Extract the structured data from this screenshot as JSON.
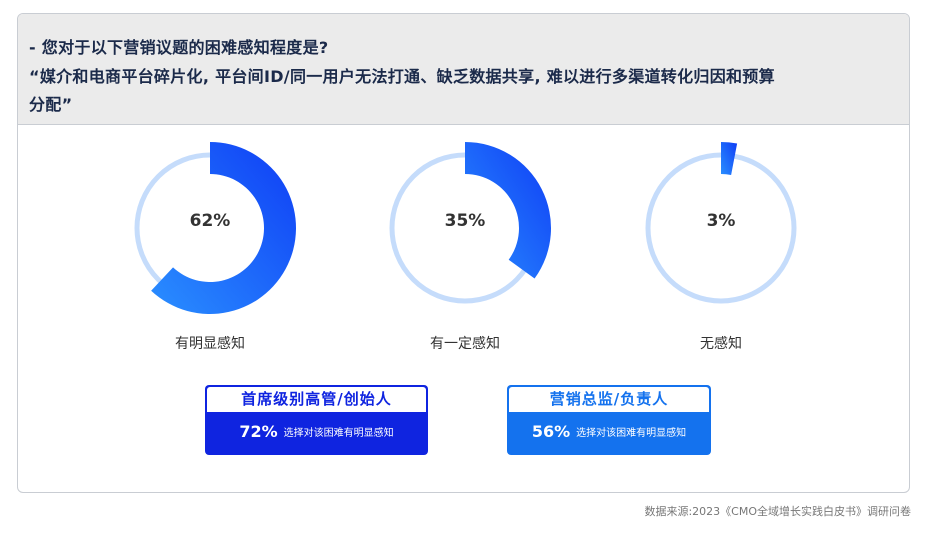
{
  "question": {
    "line1": "- 您对于以下营销议题的困难感知程度是?",
    "line2": "“媒介和电商平台碎片化, 平台间ID/同一用户无法打通、缺乏数据共享, 难以进行多渠道转化归因和预算",
    "line3": "分配”"
  },
  "chart_data": {
    "type": "pie",
    "subtype": "donut-gauge",
    "categories": [
      "有明显感知",
      "有一定感知",
      "无感知"
    ],
    "values": [
      62,
      35,
      3
    ],
    "value_labels": [
      "62%",
      "35%",
      "3%"
    ],
    "unit": "%",
    "colors": {
      "track": "#c5dcfb",
      "gradient_start": "#0f3df5",
      "gradient_end": "#2a8fff"
    }
  },
  "callouts": [
    {
      "title": "首席级别高管/创始人",
      "pct": "72%",
      "desc": "选择对该困难有明显感知",
      "color": "#0f24e0"
    },
    {
      "title": "营销总监/负责人",
      "pct": "56%",
      "desc": "选择对该困难有明显感知",
      "color": "#1472ee"
    }
  ],
  "source": "数据来源:2023《CMO全域增长实践白皮书》调研问卷"
}
